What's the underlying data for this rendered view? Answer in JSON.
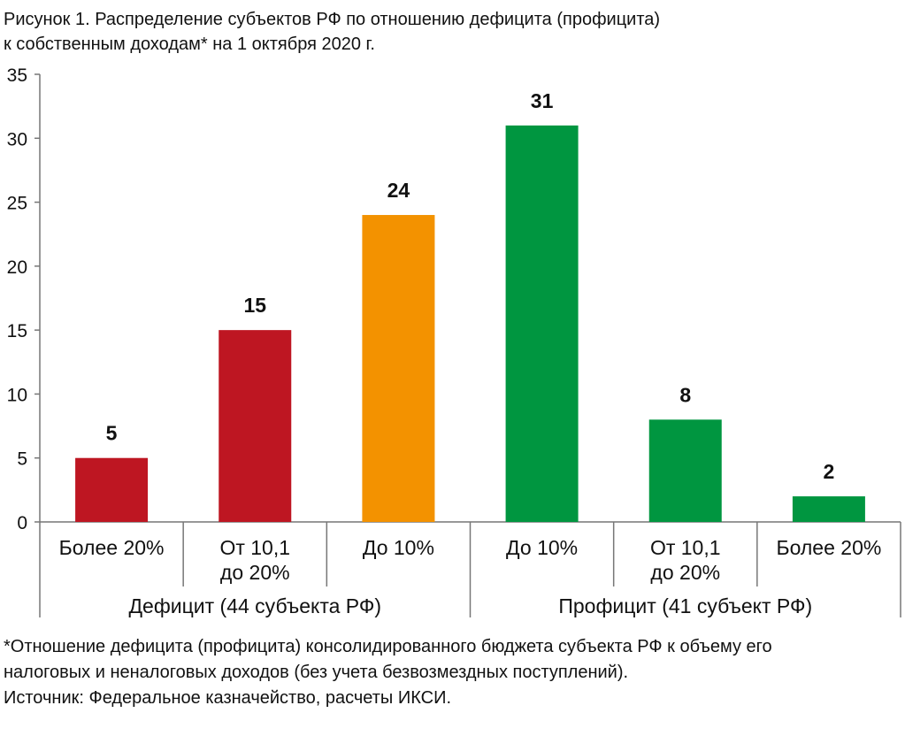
{
  "header": {
    "title_line1": "Рисунок 1. Распределение субъектов РФ по отношению дефицита (профицита)",
    "title_line2": "к собственным доходам* на 1 октября 2020 г."
  },
  "footer": {
    "note_line1": "*Отношение дефицита (профицита) консолидированного бюджета субъекта РФ к объему его",
    "note_line2": "налоговых и неналоговых доходов (без учета безвозмездных поступлений).",
    "source": "Источник: Федеральное казначейство, расчеты ИКСИ."
  },
  "chart_data": {
    "type": "bar",
    "title": "Рисунок 1. Распределение субъектов РФ по отношению дефицита (профицита) к собственным доходам* на 1 октября 2020 г.",
    "xlabel": "",
    "ylabel": "",
    "ylim": [
      0,
      35
    ],
    "yticks": [
      "0",
      "5",
      "10",
      "15",
      "20",
      "25",
      "30",
      "35"
    ],
    "grid": false,
    "legend": "none",
    "categories": [
      [
        "Более 20%"
      ],
      [
        "От 10,1",
        "до 20%"
      ],
      [
        "До 10%"
      ],
      [
        "До 10%"
      ],
      [
        "От 10,1",
        "до 20%"
      ],
      [
        "Более 20%"
      ]
    ],
    "values": [
      5,
      15,
      24,
      31,
      8,
      2
    ],
    "value_labels": [
      "5",
      "15",
      "24",
      "31",
      "8",
      "2"
    ],
    "colors": [
      "#be1622",
      "#be1622",
      "#f39200",
      "#009640",
      "#009640",
      "#009640"
    ],
    "groups": [
      {
        "label": "Дефицит (44 субъекта РФ)",
        "from": 0,
        "to": 2
      },
      {
        "label": "Профицит (41 субъект РФ)",
        "from": 3,
        "to": 5
      }
    ]
  }
}
